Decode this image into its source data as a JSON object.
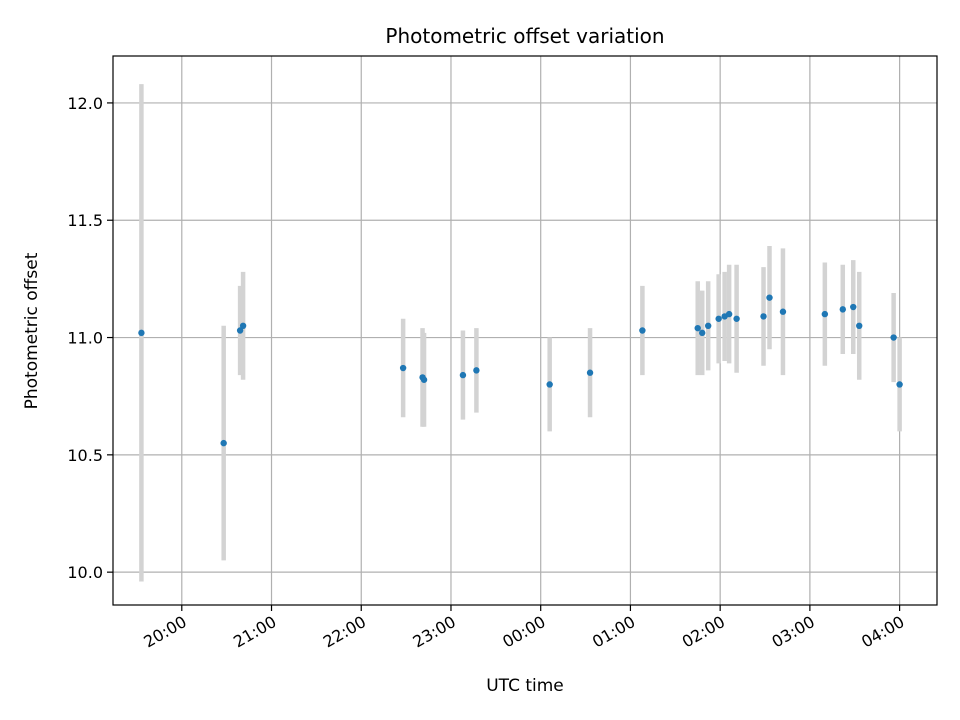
{
  "chart_data": {
    "type": "scatter",
    "title": "Photometric offset variation",
    "xlabel": "UTC time",
    "ylabel": "Photometric offset",
    "x_unit": "UTC time (hours past midnight of first night; values >24 are after 00:00)",
    "xlim": [
      "19:14",
      "04:25"
    ],
    "ylim": [
      9.86,
      12.2
    ],
    "grid": true,
    "x_ticks": [
      "20:00",
      "21:00",
      "22:00",
      "23:00",
      "00:00",
      "01:00",
      "02:00",
      "03:00",
      "04:00"
    ],
    "y_ticks": [
      "10.0",
      "10.5",
      "11.0",
      "11.5",
      "12.0"
    ],
    "colors": {
      "point": "#1f77b4",
      "errorbar": "#d3d3d3",
      "grid": "#b0b0b0"
    },
    "points": [
      {
        "time": "19:33",
        "y": 11.02,
        "err": 1.06
      },
      {
        "time": "20:28",
        "y": 10.55,
        "err": 0.5
      },
      {
        "time": "20:39",
        "y": 11.03,
        "err": 0.19
      },
      {
        "time": "20:41",
        "y": 11.05,
        "err": 0.23
      },
      {
        "time": "22:28",
        "y": 10.87,
        "err": 0.21
      },
      {
        "time": "22:41",
        "y": 10.83,
        "err": 0.21
      },
      {
        "time": "22:42",
        "y": 10.82,
        "err": 0.2
      },
      {
        "time": "23:08",
        "y": 10.84,
        "err": 0.19
      },
      {
        "time": "23:17",
        "y": 10.86,
        "err": 0.18
      },
      {
        "time": "00:06",
        "y": 10.8,
        "err": 0.2
      },
      {
        "time": "00:33",
        "y": 10.85,
        "err": 0.19
      },
      {
        "time": "01:08",
        "y": 11.03,
        "err": 0.19
      },
      {
        "time": "01:45",
        "y": 11.04,
        "err": 0.2
      },
      {
        "time": "01:48",
        "y": 11.02,
        "err": 0.18
      },
      {
        "time": "01:52",
        "y": 11.05,
        "err": 0.19
      },
      {
        "time": "01:59",
        "y": 11.08,
        "err": 0.19
      },
      {
        "time": "02:03",
        "y": 11.09,
        "err": 0.19
      },
      {
        "time": "02:06",
        "y": 11.1,
        "err": 0.21
      },
      {
        "time": "02:11",
        "y": 11.08,
        "err": 0.23
      },
      {
        "time": "02:29",
        "y": 11.09,
        "err": 0.21
      },
      {
        "time": "02:33",
        "y": 11.17,
        "err": 0.22
      },
      {
        "time": "02:42",
        "y": 11.11,
        "err": 0.27
      },
      {
        "time": "03:10",
        "y": 11.1,
        "err": 0.22
      },
      {
        "time": "03:22",
        "y": 11.12,
        "err": 0.19
      },
      {
        "time": "03:29",
        "y": 11.13,
        "err": 0.2
      },
      {
        "time": "03:33",
        "y": 11.05,
        "err": 0.23
      },
      {
        "time": "03:56",
        "y": 11.0,
        "err": 0.19
      },
      {
        "time": "04:00",
        "y": 10.8,
        "err": 0.2
      }
    ]
  }
}
